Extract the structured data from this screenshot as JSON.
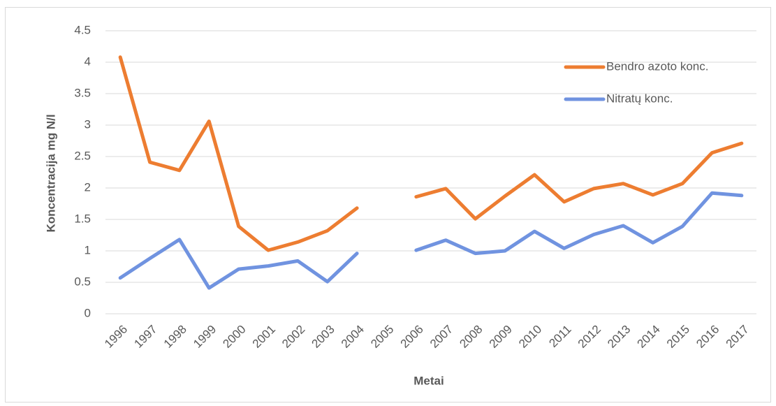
{
  "chart_data": {
    "type": "line",
    "x_label": "Metai",
    "y_label": "Koncentracija mg N/l",
    "categories": [
      "1996",
      "1997",
      "1998",
      "1999",
      "2000",
      "2001",
      "2002",
      "2003",
      "2004",
      "2005",
      "2006",
      "2007",
      "2008",
      "2009",
      "2010",
      "2011",
      "2012",
      "2013",
      "2014",
      "2015",
      "2016",
      "2017"
    ],
    "series": [
      {
        "name": "Bendro azoto konc.",
        "color": "#ed7d31",
        "values": [
          4.08,
          2.41,
          2.28,
          3.06,
          1.39,
          1.01,
          1.14,
          1.32,
          1.68,
          null,
          1.86,
          1.99,
          1.51,
          1.87,
          2.21,
          1.78,
          1.99,
          2.07,
          1.89,
          2.07,
          2.56,
          2.71
        ]
      },
      {
        "name": "Nitratų konc.",
        "color": "#7093e0",
        "values": [
          0.57,
          0.88,
          1.18,
          0.41,
          0.71,
          0.76,
          0.84,
          0.51,
          0.96,
          null,
          1.01,
          1.17,
          0.96,
          1.0,
          1.31,
          1.04,
          1.26,
          1.4,
          1.13,
          1.39,
          1.92,
          1.88
        ]
      }
    ],
    "ylim": [
      0,
      4.5
    ],
    "yticks": [
      0,
      0.5,
      1,
      1.5,
      2,
      2.5,
      3,
      3.5,
      4,
      4.5
    ],
    "grid": true,
    "legend": "top-right"
  }
}
